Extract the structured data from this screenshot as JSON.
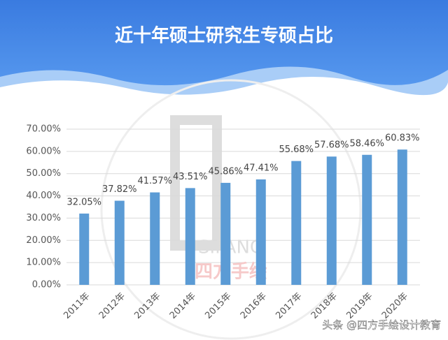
{
  "chart_data": {
    "type": "bar",
    "title": "近十年硕士研究生专硕占比",
    "categories": [
      "2011年",
      "2012年",
      "2013年",
      "2014年",
      "2015年",
      "2016年",
      "2017年",
      "2018年",
      "2019年",
      "2020年"
    ],
    "values": [
      32.05,
      37.82,
      41.57,
      43.51,
      45.86,
      47.41,
      55.68,
      57.68,
      58.46,
      60.83
    ],
    "value_labels": [
      "32.05%",
      "37.82%",
      "41.57%",
      "43.51%",
      "45.86%",
      "47.41%",
      "55.68%",
      "57.68%",
      "58.46%",
      "60.83%"
    ],
    "color": "#5b9bd5",
    "ylim": [
      0,
      70
    ],
    "yticks": [
      {
        "value": 0,
        "label": "0.00%"
      },
      {
        "value": 10,
        "label": "10.00%"
      },
      {
        "value": 20,
        "label": "20.00%"
      },
      {
        "value": 30,
        "label": "30.00%"
      },
      {
        "value": 40,
        "label": "40.00%"
      },
      {
        "value": 50,
        "label": "50.00%"
      },
      {
        "value": 60,
        "label": "60.00%"
      },
      {
        "value": 70,
        "label": "70.00%"
      }
    ],
    "grid": true,
    "logo": [
      "SIFANG",
      "四方手绘"
    ],
    "credit": "头条 @四方手绘设计教育"
  }
}
